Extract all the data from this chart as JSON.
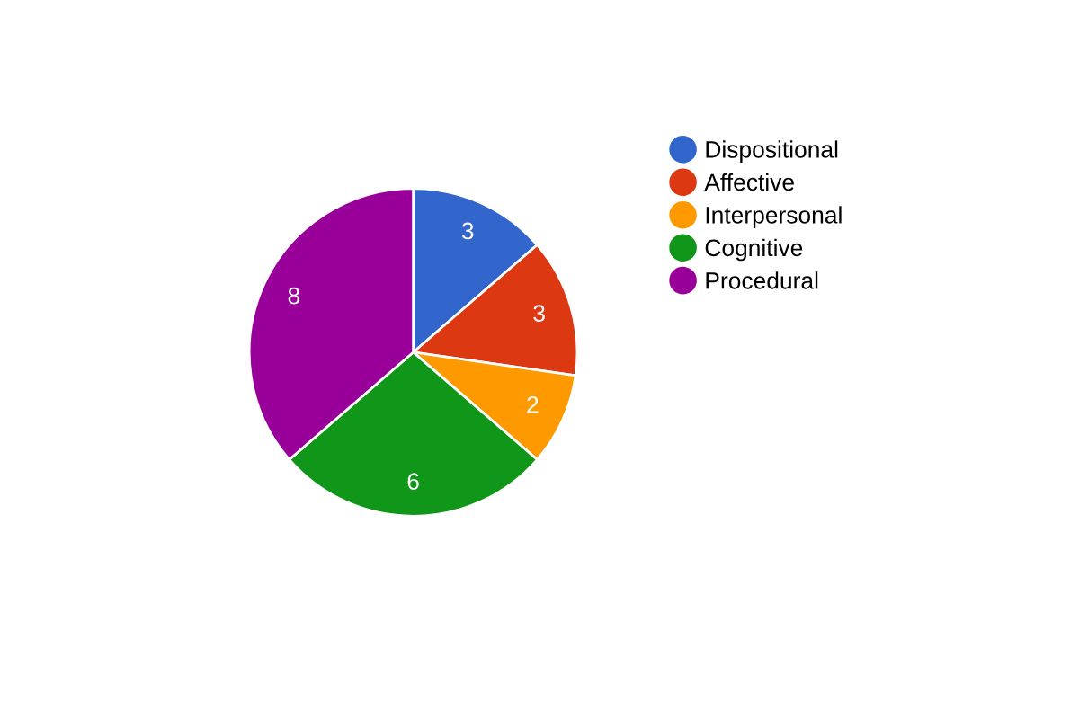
{
  "chart_data": {
    "type": "pie",
    "categories": [
      "Dispositional",
      "Affective",
      "Interpersonal",
      "Cognitive",
      "Procedural"
    ],
    "values": [
      3,
      3,
      2,
      6,
      8
    ],
    "colors": [
      "#3366cc",
      "#dc3912",
      "#ff9900",
      "#109618",
      "#990099"
    ],
    "data_labels": true,
    "legend": "right"
  }
}
